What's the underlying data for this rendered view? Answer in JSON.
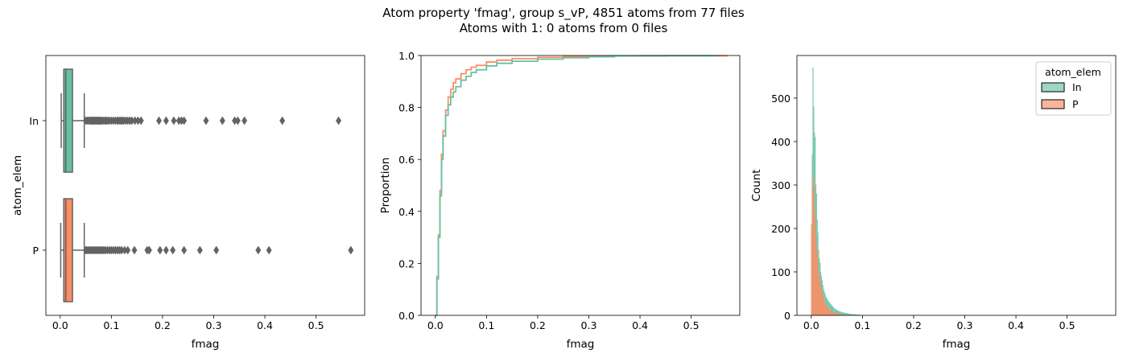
{
  "figure": {
    "title_line1": "Atom property 'fmag', group s_vP, 4851 atoms from 77 files",
    "title_line2": "Atoms with 1: 0 atoms from 0 files"
  },
  "colors": {
    "In": "#66c2a5",
    "P": "#fc8d62",
    "box_line": "#636363"
  },
  "chart_data": [
    {
      "type": "box",
      "orientation": "horizontal",
      "xlabel": "fmag",
      "ylabel": "atom_elem",
      "xlim": [
        -0.028,
        0.595
      ],
      "xticks": [
        "0.0",
        "0.1",
        "0.2",
        "0.3",
        "0.4",
        "0.5"
      ],
      "categories": [
        "In",
        "P"
      ],
      "series": [
        {
          "name": "In",
          "min": 0.002,
          "q1": 0.007,
          "median": 0.011,
          "q3": 0.024,
          "max": 0.047,
          "outliers": [
            0.05,
            0.053,
            0.056,
            0.058,
            0.06,
            0.062,
            0.064,
            0.066,
            0.068,
            0.07,
            0.072,
            0.074,
            0.076,
            0.078,
            0.08,
            0.082,
            0.085,
            0.088,
            0.09,
            0.093,
            0.096,
            0.1,
            0.104,
            0.108,
            0.112,
            0.115,
            0.118,
            0.121,
            0.124,
            0.128,
            0.132,
            0.136,
            0.14,
            0.146,
            0.152,
            0.158,
            0.193,
            0.207,
            0.222,
            0.232,
            0.237,
            0.242,
            0.285,
            0.317,
            0.341,
            0.347,
            0.36,
            0.434,
            0.544
          ]
        },
        {
          "name": "P",
          "min": 0.001,
          "q1": 0.007,
          "median": 0.011,
          "q3": 0.024,
          "max": 0.047,
          "outliers": [
            0.05,
            0.052,
            0.055,
            0.058,
            0.061,
            0.064,
            0.067,
            0.07,
            0.073,
            0.076,
            0.079,
            0.082,
            0.085,
            0.088,
            0.092,
            0.096,
            0.1,
            0.104,
            0.108,
            0.112,
            0.116,
            0.12,
            0.126,
            0.132,
            0.145,
            0.17,
            0.174,
            0.195,
            0.207,
            0.22,
            0.242,
            0.273,
            0.305,
            0.387,
            0.408,
            0.568
          ]
        }
      ]
    },
    {
      "type": "line",
      "subtype": "ecdf",
      "xlabel": "fmag",
      "ylabel": "Proportion",
      "xlim": [
        -0.028,
        0.595
      ],
      "ylim": [
        0,
        1
      ],
      "xticks": [
        "0.0",
        "0.1",
        "0.2",
        "0.3",
        "0.4",
        "0.5"
      ],
      "yticks": [
        "0.0",
        "0.2",
        "0.4",
        "0.6",
        "0.8",
        "1.0"
      ],
      "series": [
        {
          "name": "In",
          "x": [
            0.0,
            0.003,
            0.006,
            0.009,
            0.012,
            0.015,
            0.02,
            0.025,
            0.03,
            0.035,
            0.04,
            0.05,
            0.06,
            0.07,
            0.08,
            0.1,
            0.12,
            0.15,
            0.2,
            0.25,
            0.3,
            0.35,
            0.45,
            0.55
          ],
          "y": [
            0.0,
            0.14,
            0.3,
            0.46,
            0.6,
            0.69,
            0.77,
            0.81,
            0.84,
            0.86,
            0.88,
            0.905,
            0.92,
            0.935,
            0.945,
            0.96,
            0.97,
            0.978,
            0.986,
            0.991,
            0.995,
            0.998,
            0.999,
            1.0
          ]
        },
        {
          "name": "P",
          "x": [
            0.0,
            0.003,
            0.006,
            0.009,
            0.012,
            0.015,
            0.02,
            0.025,
            0.03,
            0.035,
            0.04,
            0.05,
            0.06,
            0.07,
            0.08,
            0.1,
            0.12,
            0.15,
            0.2,
            0.25,
            0.3,
            0.4,
            0.57
          ],
          "y": [
            0.0,
            0.15,
            0.31,
            0.48,
            0.62,
            0.71,
            0.79,
            0.84,
            0.87,
            0.895,
            0.91,
            0.93,
            0.945,
            0.955,
            0.962,
            0.975,
            0.982,
            0.988,
            0.993,
            0.996,
            0.998,
            0.999,
            1.0
          ]
        }
      ]
    },
    {
      "type": "bar",
      "subtype": "histogram",
      "xlabel": "fmag",
      "ylabel": "Count",
      "xlim": [
        -0.028,
        0.595
      ],
      "ylim": [
        0,
        598
      ],
      "xticks": [
        "0.0",
        "0.1",
        "0.2",
        "0.3",
        "0.4",
        "0.5"
      ],
      "yticks": [
        "0",
        "100",
        "200",
        "300",
        "400",
        "500"
      ],
      "legend": {
        "title": "atom_elem",
        "placement": "top-right",
        "entries": [
          "In",
          "P"
        ]
      },
      "bin_width": 0.00137,
      "series": [
        {
          "name": "In",
          "bin_start": 0.0,
          "counts": [
            210,
            370,
            570,
            480,
            420,
            410,
            300,
            280,
            220,
            190,
            150,
            130,
            120,
            100,
            90,
            80,
            70,
            60,
            55,
            50,
            45,
            40,
            38,
            35,
            32,
            30,
            28,
            26,
            24,
            22,
            20,
            18,
            16,
            15,
            14,
            13,
            12,
            11,
            10,
            9,
            9,
            8,
            8,
            7,
            7,
            6,
            6,
            5,
            5,
            5,
            4,
            4,
            4,
            3,
            3,
            3,
            3,
            2,
            2,
            2,
            2,
            2,
            2,
            2,
            1,
            1,
            1,
            1,
            1,
            1
          ]
        },
        {
          "name": "P",
          "bin_start": 0.0,
          "counts": [
            200,
            300,
            280,
            320,
            250,
            220,
            180,
            160,
            140,
            120,
            100,
            90,
            80,
            70,
            60,
            50,
            45,
            40,
            35,
            30,
            26,
            22,
            20,
            18,
            16,
            14,
            12,
            11,
            10,
            9,
            8,
            7,
            6,
            5,
            5,
            4,
            4,
            3,
            3,
            3,
            2,
            2,
            2,
            2,
            1,
            1,
            1,
            1
          ]
        }
      ]
    }
  ]
}
